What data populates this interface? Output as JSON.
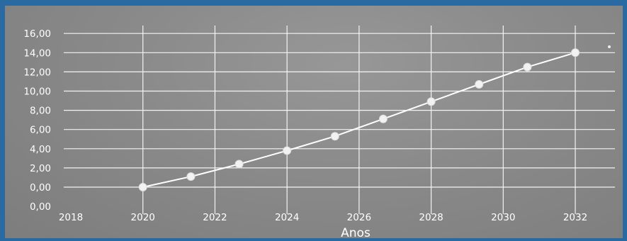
{
  "chart_data": {
    "type": "line",
    "title": "",
    "xlabel": "Anos",
    "ylabel": "",
    "xlim": [
      2018,
      2033
    ],
    "ylim": [
      -1,
      16
    ],
    "x_ticks": [
      2018,
      2020,
      2022,
      2024,
      2026,
      2028,
      2030,
      2032
    ],
    "y_ticks": [
      "0,00",
      "0,00",
      "2,00",
      "4,00",
      "6,00",
      "8,00",
      "10,00",
      "12,00",
      "14,00",
      "16,00"
    ],
    "grid": true,
    "legend": "none",
    "colors": {
      "background": "#8a8a8a",
      "frame": "#2a6aa2",
      "line": "#ffffff",
      "grid": "#ffffff"
    },
    "series": [
      {
        "x": [
          2020,
          2021.33,
          2022.67,
          2024,
          2025.33,
          2026.67,
          2028,
          2029.33,
          2030.67,
          2032
        ],
        "values": [
          0.0,
          1.1,
          2.4,
          3.8,
          5.3,
          7.1,
          8.9,
          10.7,
          12.5,
          14.0
        ]
      }
    ]
  }
}
